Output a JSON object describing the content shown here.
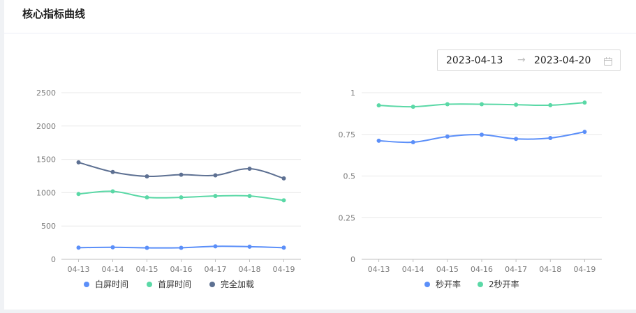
{
  "header": {
    "title": "核心指标曲线"
  },
  "date_range": {
    "start": "2023-04-13",
    "separator": "→",
    "end": "2023-04-20",
    "icon": "calendar-icon"
  },
  "colors": {
    "blue": "#5b8ff9",
    "green": "#5ad8a6",
    "navy": "#5d7092",
    "grid": "#e8e8e8",
    "axis": "#bfbfbf"
  },
  "chart_data": [
    {
      "type": "line",
      "title": "",
      "categories": [
        "04-13",
        "04-14",
        "04-15",
        "04-16",
        "04-17",
        "04-18",
        "04-19"
      ],
      "ylim": [
        0,
        2500
      ],
      "yticks": [
        0,
        500,
        1000,
        1500,
        2000,
        2500
      ],
      "ytick_labels": [
        "0",
        "500",
        "1000",
        "1500",
        "2000",
        "2500"
      ],
      "grid": true,
      "legend_position": "bottom",
      "series": [
        {
          "name": "白屏时间",
          "color": "#5b8ff9",
          "values": [
            175,
            180,
            172,
            173,
            195,
            190,
            175
          ]
        },
        {
          "name": "首屏时间",
          "color": "#5ad8a6",
          "values": [
            980,
            1020,
            930,
            930,
            950,
            950,
            885
          ]
        },
        {
          "name": "完全加载",
          "color": "#5d7092",
          "values": [
            1455,
            1310,
            1245,
            1270,
            1260,
            1360,
            1215
          ]
        }
      ]
    },
    {
      "type": "line",
      "title": "",
      "categories": [
        "04-13",
        "04-14",
        "04-15",
        "04-16",
        "04-17",
        "04-18",
        "04-19"
      ],
      "ylim": [
        0,
        1
      ],
      "yticks": [
        0,
        0.25,
        0.5,
        0.75,
        1
      ],
      "ytick_labels": [
        "0",
        "0.25",
        "0.5",
        "0.75",
        "1"
      ],
      "grid": true,
      "legend_position": "bottom",
      "series": [
        {
          "name": "秒开率",
          "color": "#5b8ff9",
          "values": [
            0.712,
            0.703,
            0.737,
            0.748,
            0.723,
            0.728,
            0.765
          ]
        },
        {
          "name": "2秒开率",
          "color": "#5ad8a6",
          "values": [
            0.924,
            0.916,
            0.931,
            0.931,
            0.928,
            0.925,
            0.941
          ]
        }
      ]
    }
  ]
}
